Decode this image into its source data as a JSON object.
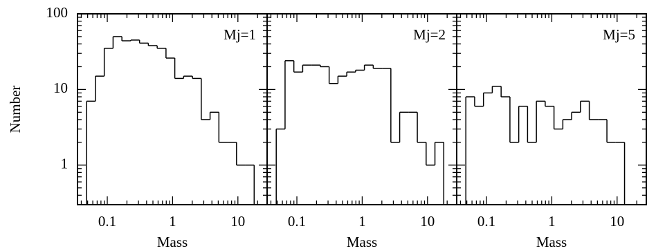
{
  "chart_data": [
    {
      "type": "histogram",
      "annotation": "Mj=1",
      "xlabel": "Mass",
      "ylabel": "Number",
      "log_x": true,
      "log_y": true,
      "xlim": [
        0.035,
        28
      ],
      "ylim": [
        0.3,
        100
      ],
      "xticks": [
        0.1,
        1,
        10
      ],
      "yticks": [
        1,
        10,
        100
      ],
      "bins": [
        0.0483,
        0.0659,
        0.0899,
        0.1227,
        0.1675,
        0.2286,
        0.3119,
        0.4256,
        0.5808,
        0.7925,
        1.081,
        1.476,
        2.014,
        2.748,
        3.75,
        5.117,
        6.982,
        9.528,
        13.0,
        17.74
      ],
      "values": [
        7,
        15,
        35,
        50,
        44,
        45,
        41,
        38,
        35,
        26,
        14,
        15,
        14,
        4,
        5,
        2,
        2,
        1,
        1
      ],
      "color": "#000000"
    },
    {
      "type": "histogram",
      "annotation": "Mj=2",
      "xlabel": "Mass",
      "log_x": true,
      "log_y": true,
      "xlim": [
        0.035,
        28
      ],
      "ylim": [
        0.3,
        100
      ],
      "xticks": [
        0.1,
        1,
        10
      ],
      "yticks": [
        1,
        10,
        100
      ],
      "bins": [
        0.0483,
        0.0659,
        0.0899,
        0.1227,
        0.1675,
        0.2286,
        0.3119,
        0.4256,
        0.5808,
        0.7925,
        1.081,
        1.476,
        2.014,
        2.748,
        3.75,
        5.117,
        6.982,
        9.528,
        13.0,
        17.74
      ],
      "values": [
        3,
        24,
        17,
        21,
        21,
        20,
        12,
        15,
        17,
        18,
        21,
        19,
        19,
        2,
        5,
        5,
        2,
        1,
        2
      ],
      "color": "#000000"
    },
    {
      "type": "histogram",
      "annotation": "Mj=5",
      "xlabel": "Mass",
      "log_x": true,
      "log_y": true,
      "xlim": [
        0.035,
        28
      ],
      "ylim": [
        0.3,
        100
      ],
      "xticks": [
        0.1,
        1,
        10
      ],
      "yticks": [
        1,
        10,
        100
      ],
      "bins": [
        0.0483,
        0.0659,
        0.0899,
        0.1227,
        0.1675,
        0.2286,
        0.3119,
        0.4256,
        0.5808,
        0.7925,
        1.081,
        1.476,
        2.014,
        2.748,
        3.75,
        5.117,
        6.982,
        9.528,
        13.0,
        17.74
      ],
      "values": [
        8,
        6,
        9,
        11,
        8,
        2,
        6,
        2,
        7,
        6,
        3,
        4,
        5,
        7,
        4,
        4,
        2,
        2,
        0
      ],
      "color": "#000000"
    }
  ]
}
